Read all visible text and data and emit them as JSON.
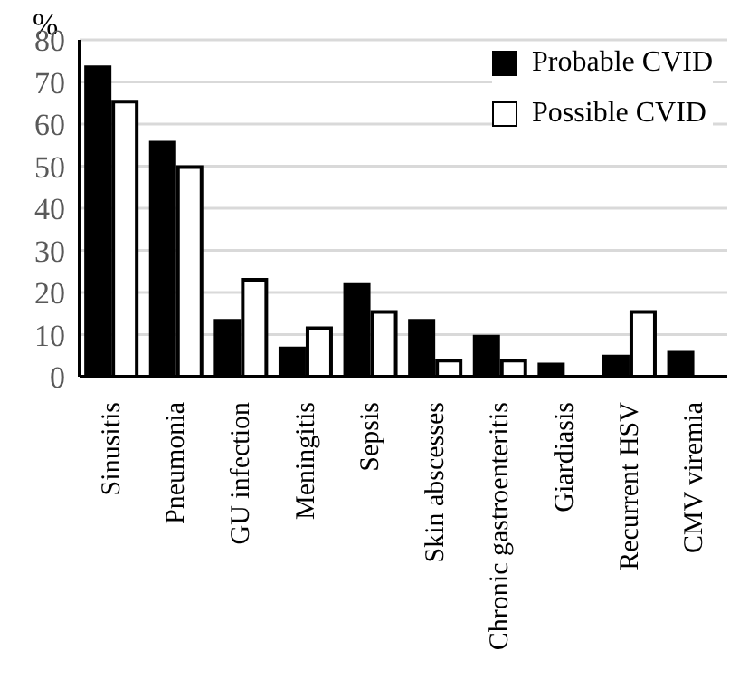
{
  "chart_data": {
    "type": "bar",
    "ylabel": "%",
    "categories": [
      "Sinusitis",
      "Pneumonia",
      "GU infection",
      "Meningitis",
      "Sepsis",
      "Skin abscesses",
      "Chronic gastroenteritis",
      "Giardiasis",
      "Recurrent HSV",
      "CMV viremia"
    ],
    "series": [
      {
        "name": "Probable CVID",
        "color": "#000000",
        "values": [
          73.5,
          55.6,
          13.3,
          6.7,
          21.8,
          13.3,
          9.5,
          2.9,
          4.8,
          5.7
        ]
      },
      {
        "name": "Possible CVID",
        "color": "#ffffff",
        "values": [
          65.3,
          49.8,
          23,
          11.5,
          15.4,
          3.8,
          3.8,
          0,
          15.4,
          0
        ]
      }
    ],
    "ylim": [
      0,
      80
    ],
    "yticks": [
      0,
      10,
      20,
      30,
      40,
      50,
      60,
      70,
      80
    ],
    "grid": "y",
    "legend": "top right"
  }
}
